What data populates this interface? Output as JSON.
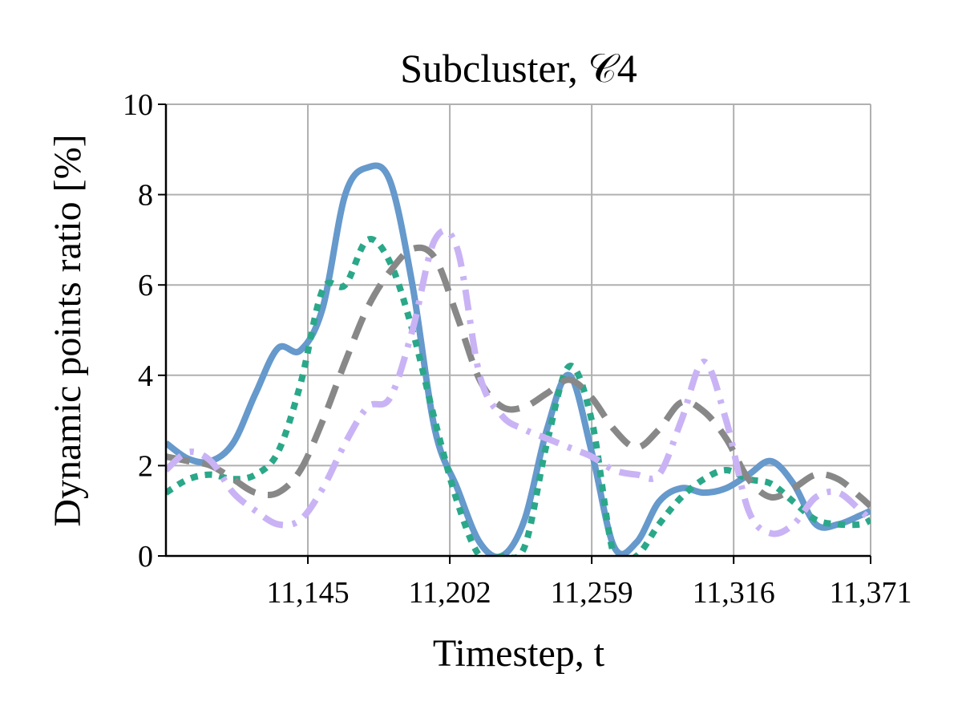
{
  "chart_data": {
    "type": "line",
    "title": "Subcluster, 𝒞4",
    "x_label": "Timestep, t",
    "y_label": "Dynamic points ratio [%]",
    "x": [
      11088,
      11097,
      11106,
      11115,
      11124,
      11133,
      11142,
      11151,
      11160,
      11169,
      11178,
      11187,
      11196,
      11205,
      11214,
      11223,
      11232,
      11241,
      11250,
      11259,
      11268,
      11277,
      11286,
      11295,
      11304,
      11313,
      11322,
      11331,
      11340,
      11349,
      11358,
      11367,
      11371
    ],
    "series": [
      {
        "color": "#6699cc",
        "linestyle": "solid",
        "values": [
          2.5,
          2.15,
          2.1,
          2.5,
          3.6,
          4.6,
          4.55,
          5.5,
          8.0,
          8.6,
          8.3,
          6.0,
          2.8,
          1.5,
          0.3,
          0.0,
          0.8,
          2.8,
          4.0,
          2.3,
          0.2,
          0.3,
          1.2,
          1.5,
          1.4,
          1.5,
          1.8,
          2.1,
          1.6,
          0.7,
          0.7,
          0.9,
          1.0
        ]
      },
      {
        "color": "#2aa889",
        "linestyle": "dotted",
        "values": [
          1.4,
          1.7,
          1.8,
          1.7,
          1.8,
          2.3,
          3.8,
          5.9,
          6.0,
          7.0,
          6.5,
          5.0,
          3.0,
          1.2,
          0.0,
          0.0,
          0.2,
          2.5,
          4.2,
          3.0,
          0.0,
          0.0,
          0.7,
          1.3,
          1.7,
          1.9,
          1.7,
          1.6,
          1.2,
          0.8,
          0.7,
          0.7,
          0.8
        ]
      },
      {
        "color": "#888888",
        "linestyle": "dashed",
        "values": [
          2.2,
          2.1,
          2.0,
          1.7,
          1.4,
          1.4,
          1.9,
          3.0,
          4.3,
          5.5,
          6.3,
          6.8,
          6.6,
          5.3,
          3.9,
          3.3,
          3.3,
          3.6,
          3.9,
          3.5,
          2.8,
          2.4,
          2.8,
          3.4,
          3.2,
          2.6,
          1.7,
          1.3,
          1.5,
          1.8,
          1.7,
          1.3,
          1.1
        ]
      },
      {
        "color": "#c9b3f5",
        "linestyle": "dashdot",
        "values": [
          1.9,
          2.3,
          2.1,
          1.4,
          1.0,
          0.7,
          0.8,
          1.5,
          2.5,
          3.3,
          3.5,
          5.0,
          7.0,
          6.8,
          4.0,
          3.1,
          2.8,
          2.6,
          2.4,
          2.2,
          1.9,
          1.8,
          1.8,
          3.0,
          4.3,
          3.0,
          1.0,
          0.5,
          0.7,
          1.3,
          1.4,
          1.0,
          0.8
        ]
      }
    ],
    "xlim": [
      11088,
      11371
    ],
    "xticks": [
      {
        "value": 11145,
        "label": "11,145"
      },
      {
        "value": 11202,
        "label": "11,202"
      },
      {
        "value": 11259,
        "label": "11,259"
      },
      {
        "value": 11316,
        "label": "11,316"
      },
      {
        "value": 11371,
        "label": "11,371"
      }
    ],
    "ylim": [
      0,
      10
    ],
    "yticks": [
      0,
      2,
      4,
      6,
      8,
      10
    ],
    "grid": true
  }
}
